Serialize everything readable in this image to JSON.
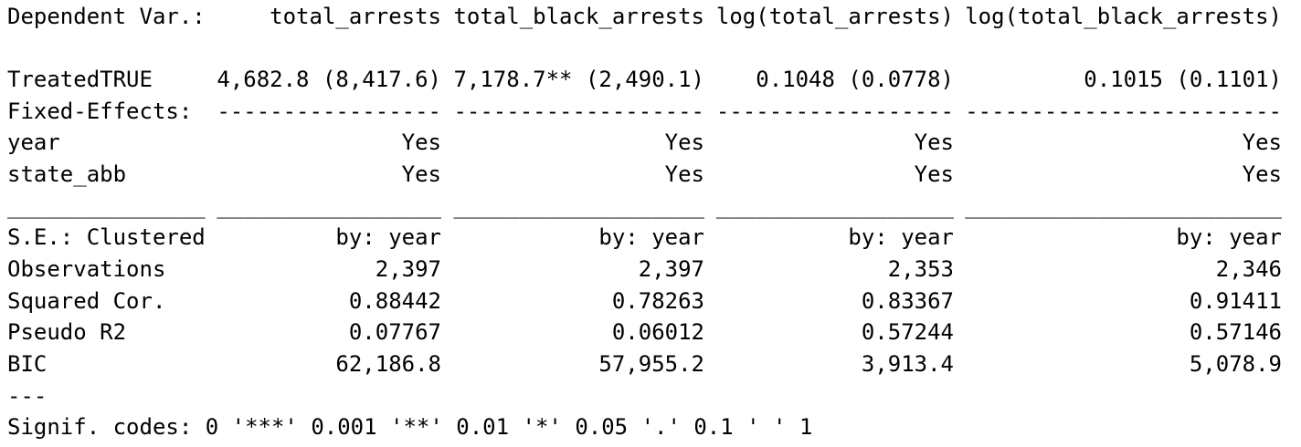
{
  "header": {
    "label": "Dependent Var.:",
    "cells": [
      "total_arrests",
      "total_black_arrests",
      "log(total_arrests)",
      "log(total_black_arrests)"
    ]
  },
  "rows": [
    {
      "label": "TreatedTRUE",
      "cells": [
        "4,682.8 (8,417.6)",
        "7,178.7** (2,490.1)",
        "0.1048 (0.0778)",
        "0.1015 (0.1101)"
      ]
    },
    {
      "label": "Fixed-Effects:",
      "cells": [
        "-----------------",
        "-------------------",
        "------------------",
        "------------------------"
      ]
    },
    {
      "label": "year",
      "cells": [
        "Yes",
        "Yes",
        "Yes",
        "Yes"
      ]
    },
    {
      "label": "state_abb",
      "cells": [
        "Yes",
        "Yes",
        "Yes",
        "Yes"
      ]
    },
    {
      "label": "_______________",
      "cells": [
        "_________________",
        "___________________",
        "__________________",
        "________________________"
      ]
    },
    {
      "label": "S.E.: Clustered",
      "cells": [
        "by: year",
        "by: year",
        "by: year",
        "by: year"
      ]
    },
    {
      "label": "Observations",
      "cells": [
        "2,397",
        "2,397",
        "2,353",
        "2,346"
      ]
    },
    {
      "label": "Squared Cor.",
      "cells": [
        "0.88442",
        "0.78263",
        "0.83367",
        "0.91411"
      ]
    },
    {
      "label": "Pseudo R2",
      "cells": [
        "0.07767",
        "0.06012",
        "0.57244",
        "0.57146"
      ]
    },
    {
      "label": "BIC",
      "cells": [
        "62,186.8",
        "57,955.2",
        "3,913.4",
        "5,078.9"
      ]
    }
  ],
  "footer": {
    "rule": "---",
    "signif": "Signif. codes: 0 '***' 0.001 '**' 0.01 '*' 0.05 '.' 0.1 ' ' 1"
  }
}
